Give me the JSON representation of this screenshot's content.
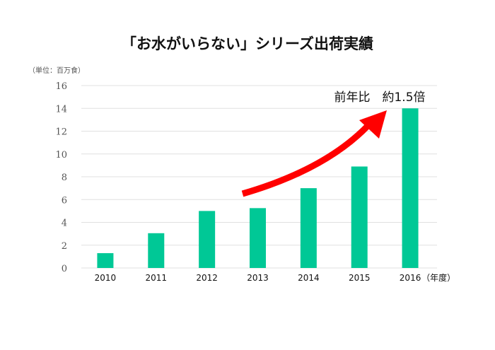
{
  "chart_data": {
    "type": "bar",
    "title": "「お水がいらない」シリーズ出荷実績",
    "unit_label": "（単位：百万食）",
    "xlabel_suffix": "（年度）",
    "categories": [
      "2010",
      "2011",
      "2012",
      "2013",
      "2014",
      "2015",
      "2016"
    ],
    "values": [
      1.3,
      3.05,
      5.0,
      5.25,
      7.0,
      8.9,
      14.0
    ],
    "ylim": [
      0,
      16
    ],
    "yticks": [
      0,
      2,
      4,
      6,
      8,
      10,
      12,
      14,
      16
    ],
    "grid": true,
    "bar_color": "#00c896",
    "annotation": "前年比　約1.5倍",
    "arrow_color": "#ff0000"
  }
}
